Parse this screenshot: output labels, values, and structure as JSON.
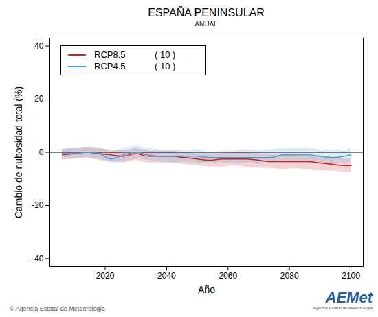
{
  "chart_data": {
    "type": "line",
    "title": "ESPAÑA PENINSULAR",
    "subtitle": "ANUAL",
    "x_label": "Año",
    "y_label": "Cambio de nubosidad total (%)",
    "x": [
      2006,
      2010,
      2014,
      2018,
      2022,
      2026,
      2030,
      2034,
      2038,
      2042,
      2046,
      2050,
      2054,
      2058,
      2062,
      2066,
      2070,
      2074,
      2078,
      2082,
      2086,
      2090,
      2094,
      2098,
      2100
    ],
    "series": [
      {
        "name": "RCP8.5",
        "members_label": "( 10 )",
        "color": "#cc2222",
        "values": [
          -1,
          -0.5,
          0,
          -0.5,
          -1,
          -1.5,
          -0.5,
          -1.5,
          -1.5,
          -1.5,
          -2,
          -2.5,
          -3,
          -2.5,
          -2.5,
          -2.5,
          -3,
          -3.5,
          -3.5,
          -3.5,
          -3.5,
          -4,
          -4.5,
          -5,
          -5
        ],
        "lower": [
          -3,
          -2.5,
          -2,
          -3,
          -3.5,
          -4,
          -3,
          -4,
          -4,
          -4,
          -4.5,
          -5,
          -5.5,
          -5.5,
          -5,
          -5.5,
          -6,
          -6,
          -6.5,
          -6,
          -6.5,
          -7,
          -7,
          -7.5,
          -7.5
        ],
        "upper": [
          1,
          1.5,
          2,
          1.5,
          1,
          0.5,
          1.5,
          0.5,
          0.5,
          0.5,
          0,
          -0.5,
          -0.5,
          -0.5,
          0,
          0,
          -0.5,
          -1,
          -1,
          -1.5,
          -1.5,
          -1.5,
          -2,
          -2.5,
          -2.5
        ]
      },
      {
        "name": "RCP4.5",
        "members_label": "( 10 )",
        "color": "#4a9ad9",
        "values": [
          -0.5,
          -0.5,
          0,
          -0.5,
          -2.5,
          -1,
          0,
          -1,
          -1.5,
          -1.5,
          -1.5,
          -1.5,
          -2,
          -2,
          -2,
          -2,
          -2,
          -2,
          -1,
          -1,
          -1,
          -1.5,
          -2,
          -1.5,
          -1
        ],
        "lower": [
          -2.5,
          -2.5,
          -2,
          -2.5,
          -4,
          -3.5,
          -2.5,
          -3,
          -3.5,
          -4,
          -3.5,
          -4,
          -4,
          -4,
          -4.5,
          -4,
          -4.5,
          -4,
          -3.5,
          -3.5,
          -4,
          -4,
          -4.5,
          -4,
          -3.5
        ],
        "upper": [
          1.5,
          1.5,
          2,
          2,
          0,
          1.5,
          2.5,
          1.5,
          1,
          1,
          0.5,
          1,
          0,
          0.5,
          0.5,
          1,
          0.5,
          1,
          1.5,
          1.5,
          1.5,
          1,
          0.5,
          1,
          1.5
        ]
      }
    ],
    "reference_line": 0,
    "xlim": [
      2002,
      2104
    ],
    "xticks": [
      2020,
      2040,
      2060,
      2080,
      2100
    ],
    "ylim": [
      -43,
      43
    ],
    "yticks": [
      -40,
      -20,
      0,
      20,
      40
    ],
    "grid": false,
    "legend": "upper left",
    "caption": "© Agencia Estatal de Meteorología",
    "logo": {
      "text": "AEMet",
      "subtitle": "Agencia Estatal de Meteorología"
    }
  }
}
